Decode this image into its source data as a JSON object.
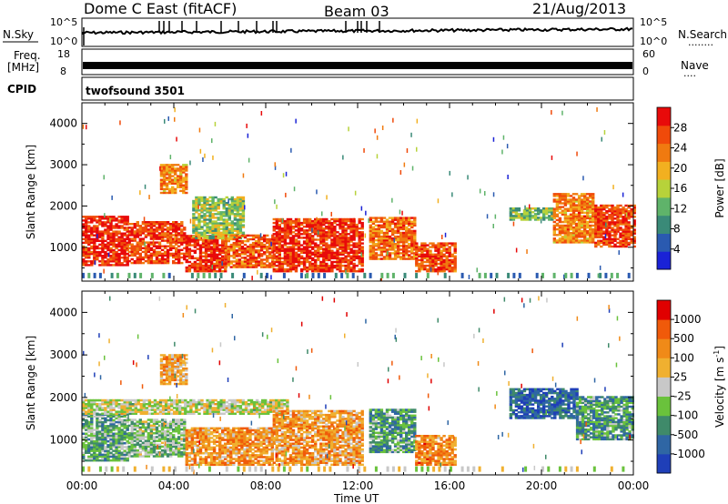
{
  "header": {
    "station": "Dome C East (fitACF)",
    "beam": "Beam 03",
    "date": "21/Aug/2013"
  },
  "meta_panel": {
    "nsky_label": "N.Sky",
    "nsearch_label": "N.Search",
    "nsearch_dots": "........",
    "freq_label_1": "Freq.",
    "freq_label_2": "[MHz]",
    "nave_label": "Nave",
    "nave_dots": "....",
    "cpid_label": "CPID",
    "cpid_value": "twofsound 3501",
    "noise_ticks_left": [
      "10^5",
      "10^0"
    ],
    "noise_ticks_right": [
      "10^5",
      "10^0"
    ],
    "freq_ticks": [
      "18",
      "8"
    ],
    "nave_ticks": [
      "60",
      "0"
    ]
  },
  "colors": {
    "power_scale": [
      "#1a22d6",
      "#2a5ab0",
      "#3a8a78",
      "#5fb36a",
      "#b7d23a",
      "#f2b020",
      "#f07a10",
      "#f04a0a",
      "#e80a0a"
    ],
    "velocity_scale": [
      "#1f3fb8",
      "#2f66a4",
      "#3f8a6a",
      "#6ac23c",
      "#c8c8c8",
      "#f0b030",
      "#f08a18",
      "#f05a0a",
      "#e00000"
    ]
  },
  "chart_data": [
    {
      "type": "heatmap",
      "name": "power",
      "xlabel": "",
      "ylabel": "Slant Range [km]",
      "x_ticks": [
        "00:00",
        "04:00",
        "08:00",
        "12:00",
        "16:00",
        "20:00",
        "00:00"
      ],
      "y_ticks": [
        1000,
        2000,
        3000,
        4000
      ],
      "xlim_hours": [
        0,
        24
      ],
      "ylim_km": [
        180,
        4500
      ],
      "colorbar": {
        "label": "Power [dB]",
        "ticks": [
          "28",
          "24",
          "20",
          "16",
          "12",
          "8",
          "4"
        ],
        "range": [
          0,
          30
        ]
      },
      "regions": [
        {
          "t0": 0.0,
          "t1": 2.0,
          "r0": 550,
          "r1": 1750,
          "level": 0.92
        },
        {
          "t0": 2.0,
          "t1": 4.5,
          "r0": 600,
          "r1": 1600,
          "level": 0.85
        },
        {
          "t0": 3.4,
          "t1": 4.6,
          "r0": 2300,
          "r1": 3000,
          "level": 0.7
        },
        {
          "t0": 4.5,
          "t1": 6.2,
          "r0": 400,
          "r1": 1300,
          "level": 0.9
        },
        {
          "t0": 4.8,
          "t1": 7.0,
          "r0": 1200,
          "r1": 2200,
          "level": 0.45
        },
        {
          "t0": 6.2,
          "t1": 8.3,
          "r0": 500,
          "r1": 1300,
          "level": 0.8
        },
        {
          "t0": 8.3,
          "t1": 12.2,
          "r0": 400,
          "r1": 1700,
          "level": 0.9
        },
        {
          "t0": 12.5,
          "t1": 14.5,
          "r0": 700,
          "r1": 1700,
          "level": 0.75
        },
        {
          "t0": 14.5,
          "t1": 16.2,
          "r0": 400,
          "r1": 1100,
          "level": 0.82
        },
        {
          "t0": 18.6,
          "t1": 20.5,
          "r0": 1650,
          "r1": 1950,
          "level": 0.4
        },
        {
          "t0": 20.5,
          "t1": 22.3,
          "r0": 1100,
          "r1": 2300,
          "level": 0.72
        },
        {
          "t0": 22.3,
          "t1": 24.0,
          "r0": 1000,
          "r1": 2000,
          "level": 0.85
        }
      ]
    },
    {
      "type": "heatmap",
      "name": "velocity",
      "xlabel": "Time UT",
      "ylabel": "Slant Range [km]",
      "x_ticks": [
        "00:00",
        "04:00",
        "08:00",
        "12:00",
        "16:00",
        "20:00",
        "00:00"
      ],
      "y_ticks": [
        1000,
        2000,
        3000,
        4000
      ],
      "xlim_hours": [
        0,
        24
      ],
      "ylim_km": [
        180,
        4500
      ],
      "colorbar": {
        "label": "Velocity [m s^-1]",
        "ticks": [
          "1000",
          "500",
          "100",
          "25",
          "-25",
          "-100",
          "-500",
          "-1000"
        ]
      },
      "regions": [
        {
          "t0": 0.0,
          "t1": 2.0,
          "r0": 500,
          "r1": 1600,
          "level": 0.35
        },
        {
          "t0": 0.0,
          "t1": 9.0,
          "r0": 1600,
          "r1": 1950,
          "level": 0.5
        },
        {
          "t0": 2.0,
          "t1": 4.5,
          "r0": 600,
          "r1": 1500,
          "level": 0.4
        },
        {
          "t0": 3.4,
          "t1": 4.6,
          "r0": 2300,
          "r1": 3000,
          "level": 0.65
        },
        {
          "t0": 4.5,
          "t1": 8.3,
          "r0": 400,
          "r1": 1300,
          "level": 0.7
        },
        {
          "t0": 8.3,
          "t1": 12.2,
          "r0": 400,
          "r1": 1700,
          "level": 0.68
        },
        {
          "t0": 12.5,
          "t1": 14.5,
          "r0": 700,
          "r1": 1700,
          "level": 0.3
        },
        {
          "t0": 14.5,
          "t1": 16.2,
          "r0": 400,
          "r1": 1100,
          "level": 0.72
        },
        {
          "t0": 18.6,
          "t1": 21.5,
          "r0": 1500,
          "r1": 2200,
          "level": 0.15
        },
        {
          "t0": 21.5,
          "t1": 24.0,
          "r0": 1000,
          "r1": 2000,
          "level": 0.3
        }
      ]
    }
  ]
}
